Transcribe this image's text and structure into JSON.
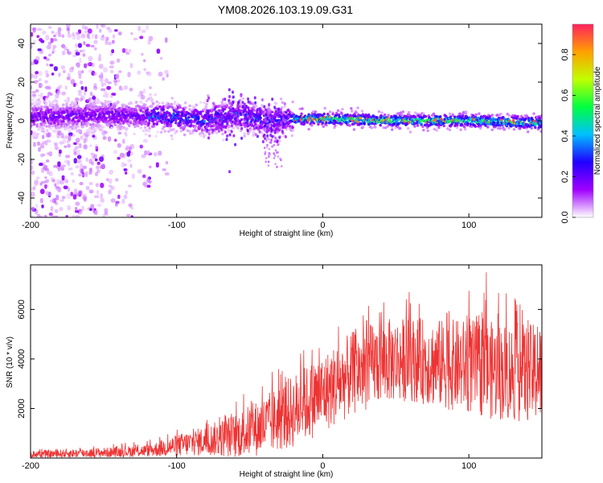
{
  "title": "YM08.2026.103.19.09.G31",
  "chart_data": [
    {
      "type": "heatmap",
      "name": "spectrogram",
      "xlabel": "Height of straight line (km)",
      "ylabel": "Frequency (Hz)",
      "xlim": [
        -200,
        150
      ],
      "ylim": [
        -50,
        50
      ],
      "xticks": [
        -200,
        -100,
        0,
        100
      ],
      "xtick_labels": [
        "-200",
        "-100",
        "0",
        "100"
      ],
      "yticks": [
        -40,
        -20,
        0,
        20,
        40
      ],
      "ytick_labels": [
        "-40",
        "-20",
        "0",
        "20",
        "40"
      ],
      "colorbar": {
        "label": "Normalized spectral amplitude",
        "range": [
          0,
          0.95
        ],
        "ticks": [
          0.0,
          0.2,
          0.4,
          0.6,
          0.8
        ],
        "tick_labels": [
          "0.0",
          "0.2",
          "0.4",
          "0.6",
          "0.8"
        ],
        "colormap": [
          "#ffffff",
          "#a000ff",
          "#2000ff",
          "#00c0ff",
          "#00ff40",
          "#c0ff00",
          "#ffa000",
          "#ff2060"
        ]
      },
      "description_points": {
        "noise_region_x": [
          -200,
          -120
        ],
        "band_center_hz": [
          {
            "x": -200,
            "f": 2
          },
          {
            "x": -150,
            "f": 3
          },
          {
            "x": -100,
            "f": 2
          },
          {
            "x": -80,
            "f": 0
          },
          {
            "x": -60,
            "f": 3
          },
          {
            "x": -40,
            "f": 0
          },
          {
            "x": -20,
            "f": 1
          },
          {
            "x": 0,
            "f": 1
          },
          {
            "x": 50,
            "f": 0
          },
          {
            "x": 100,
            "f": 0
          },
          {
            "x": 150,
            "f": -1
          }
        ]
      }
    },
    {
      "type": "line",
      "name": "snr",
      "xlabel": "Height of straight line (km)",
      "ylabel": "SNR (10 * v/v)",
      "xlim": [
        -200,
        150
      ],
      "ylim": [
        0,
        7800
      ],
      "xticks": [
        -200,
        -100,
        0,
        100
      ],
      "xtick_labels": [
        "-200",
        "-100",
        "0",
        "100"
      ],
      "yticks": [
        2000,
        4000,
        6000
      ],
      "ytick_labels": [
        "2000",
        "4000",
        "6000"
      ],
      "color": "#ee3333",
      "envelope": {
        "x": [
          -200,
          -150,
          -120,
          -100,
          -80,
          -60,
          -40,
          -20,
          0,
          20,
          40,
          60,
          80,
          100,
          120,
          150
        ],
        "mean": [
          150,
          220,
          300,
          500,
          700,
          900,
          1300,
          1900,
          2600,
          3400,
          3900,
          4000,
          3800,
          3700,
          3500,
          3400
        ],
        "spread": [
          150,
          200,
          250,
          450,
          600,
          900,
          1200,
          1500,
          1600,
          1700,
          1700,
          1700,
          1800,
          1900,
          2000,
          2000
        ],
        "spikes": [
          {
            "x": -13,
            "y": 4350
          },
          {
            "x": -5,
            "y": 3600
          },
          {
            "x": 30,
            "y": 5550
          },
          {
            "x": 40,
            "y": 5900
          },
          {
            "x": 60,
            "y": 6250
          },
          {
            "x": 85,
            "y": 5850
          },
          {
            "x": 100,
            "y": 6750
          },
          {
            "x": 112,
            "y": 7500
          },
          {
            "x": 135,
            "y": 6200
          },
          {
            "x": 147,
            "y": 5300
          }
        ]
      }
    }
  ]
}
